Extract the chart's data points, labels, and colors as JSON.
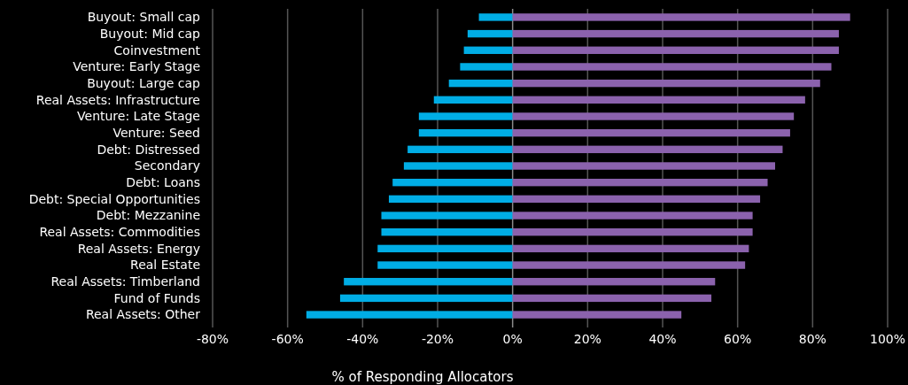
{
  "chart_data": {
    "type": "bar",
    "orientation": "horizontal",
    "xlabel": "% of Responding Allocators",
    "categories": [
      "Buyout: Small cap",
      "Buyout: Mid cap",
      "Coinvestment",
      "Venture: Early Stage",
      "Buyout: Large cap",
      "Real Assets: Infrastructure",
      "Venture: Late Stage",
      "Venture: Seed",
      "Debt: Distressed",
      "Secondary",
      "Debt: Loans",
      "Debt: Special Opportunities",
      "Debt: Mezzanine",
      "Real Assets: Commodities",
      "Real Assets: Energy",
      "Real Estate",
      "Real Assets: Timberland",
      "Fund of Funds",
      "Real Assets: Other"
    ],
    "series": [
      {
        "color": "#00ade5",
        "values": [
          -9,
          -12,
          -13,
          -14,
          -17,
          -21,
          -25,
          -25,
          -28,
          -29,
          -32,
          -33,
          -35,
          -35,
          -36,
          -36,
          -45,
          -46,
          -55
        ]
      },
      {
        "color": "#8b62ad",
        "values": [
          90,
          87,
          87,
          85,
          82,
          78,
          75,
          74,
          72,
          70,
          68,
          66,
          64,
          64,
          63,
          62,
          54,
          53,
          45
        ]
      }
    ],
    "xlim": [
      -80,
      100
    ],
    "xticks": [
      {
        "value": -80,
        "label": "-80%"
      },
      {
        "value": -60,
        "label": "-60%"
      },
      {
        "value": -40,
        "label": "-40%"
      },
      {
        "value": -20,
        "label": "-20%"
      },
      {
        "value": 0,
        "label": "0%"
      },
      {
        "value": 20,
        "label": "20%"
      },
      {
        "value": 40,
        "label": "40%"
      },
      {
        "value": 60,
        "label": "60%"
      },
      {
        "value": 80,
        "label": "80%"
      },
      {
        "value": 100,
        "label": "100%"
      }
    ],
    "grid": "x",
    "stacked": true
  }
}
